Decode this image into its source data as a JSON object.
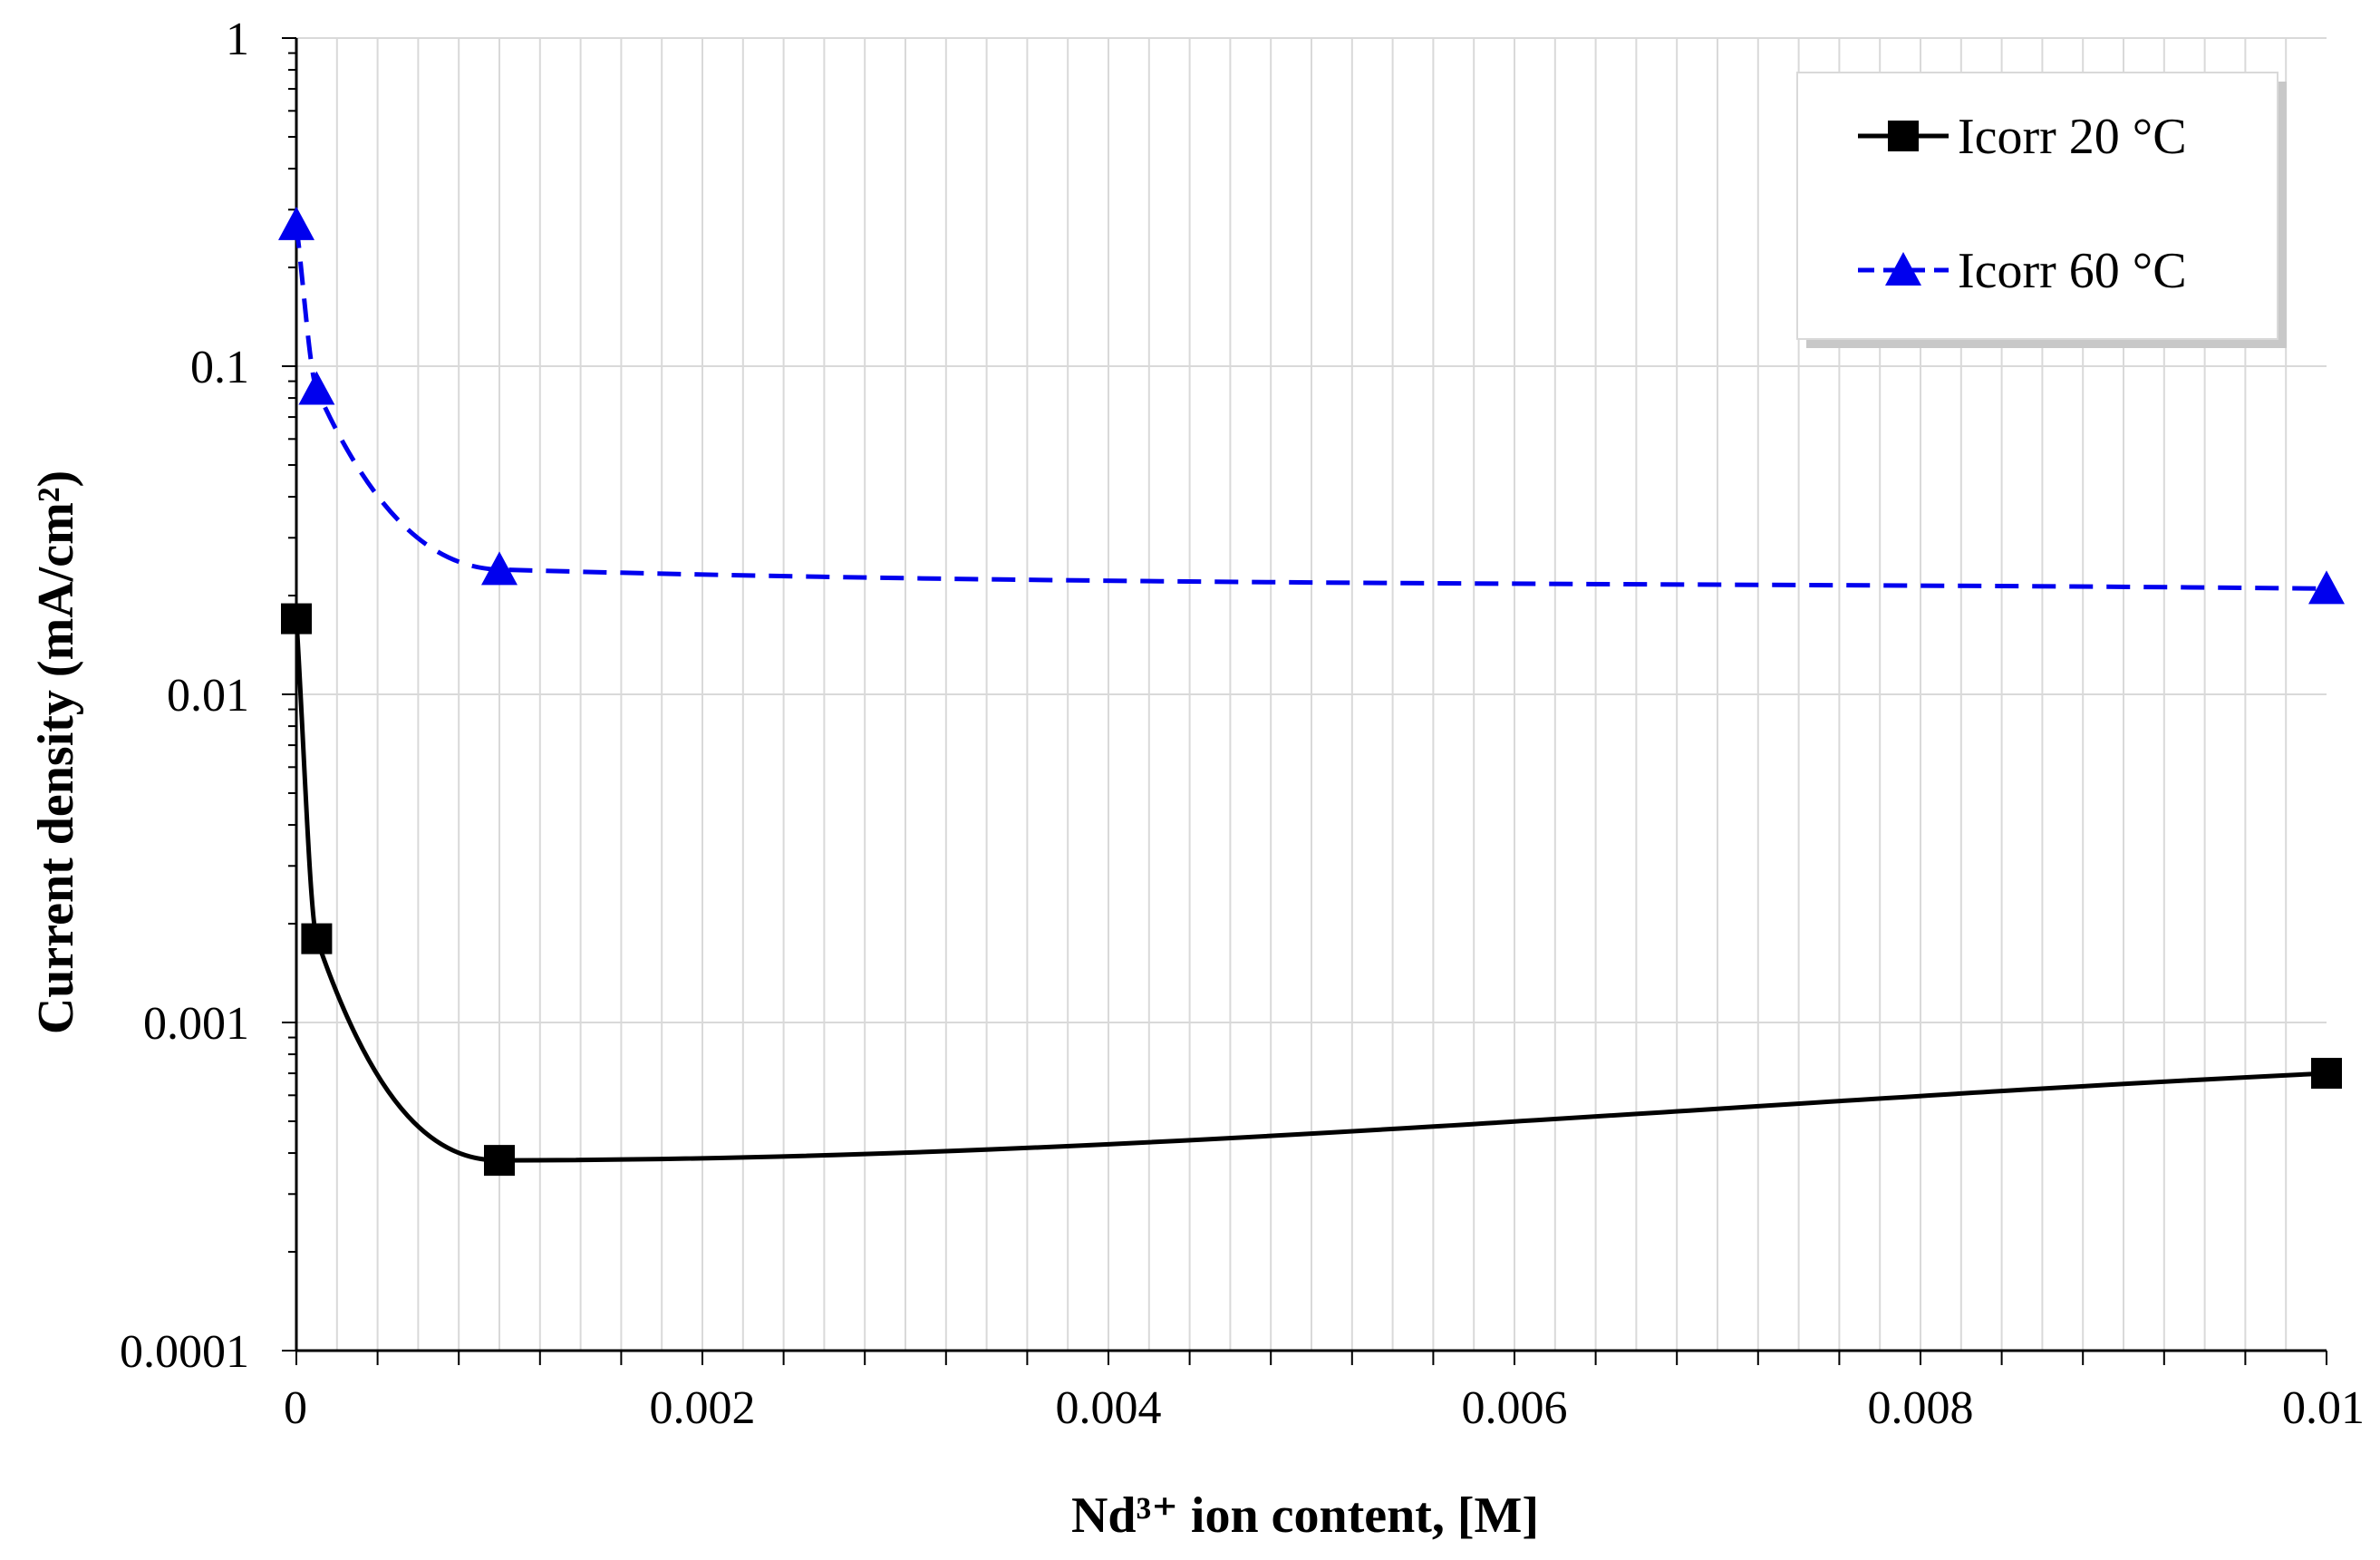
{
  "chart_data": {
    "type": "line",
    "title": "",
    "xlabel": "Nd³⁺ ion content, [M]",
    "ylabel": "Current density (mA/cm²)",
    "x_scale": "linear",
    "y_scale": "log",
    "xlim": [
      0,
      0.01
    ],
    "ylim": [
      0.0001,
      1
    ],
    "grid": true,
    "legend_position": "top-right",
    "x_ticks": [
      0,
      0.002,
      0.004,
      0.006,
      0.008,
      0.01
    ],
    "x_tick_labels": [
      "0",
      "0.002",
      "0.004",
      "0.006",
      "0.008",
      "0.01"
    ],
    "y_ticks": [
      0.0001,
      0.001,
      0.01,
      0.1,
      1
    ],
    "y_tick_labels": [
      "0.0001",
      "0.001",
      "0.01",
      "0.1",
      "1"
    ],
    "series": [
      {
        "name": "Icorr 20 °C",
        "color": "#000000",
        "line_style": "solid",
        "marker": "square",
        "x": [
          0,
          0.0001,
          0.001,
          0.01
        ],
        "values": [
          0.017,
          0.0018,
          0.00038,
          0.0007
        ]
      },
      {
        "name": "Icorr 60 °C",
        "color": "#0000ee",
        "line_style": "dashed",
        "marker": "triangle",
        "x": [
          0,
          0.0001,
          0.001,
          0.01
        ],
        "values": [
          0.27,
          0.085,
          0.024,
          0.021
        ]
      }
    ]
  }
}
